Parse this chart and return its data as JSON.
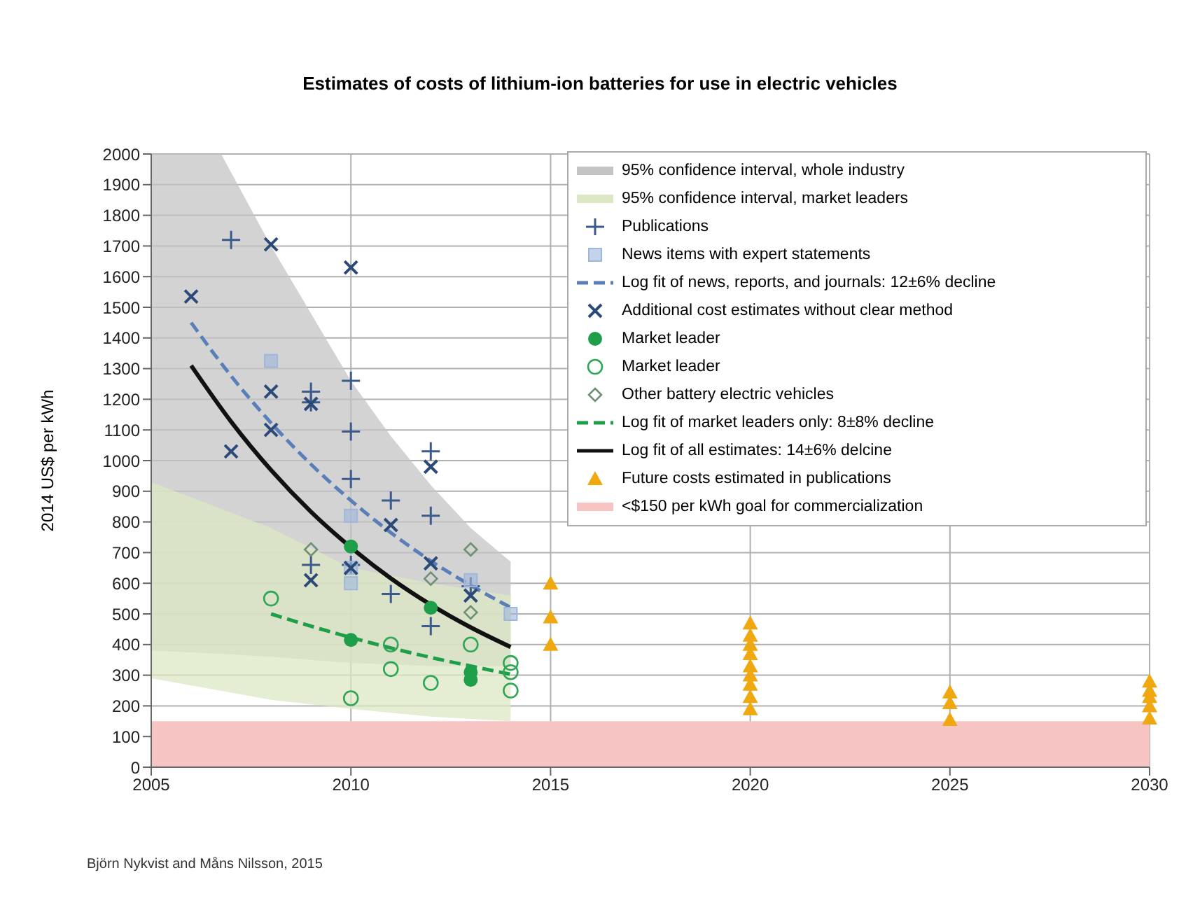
{
  "chart_data": {
    "type": "scatter",
    "title": "Estimates of costs of lithium-ion batteries for use in electric vehicles",
    "ylabel": "2014 US$ per kWh",
    "annotations": [
      "Björn Nykvist and Måns Nilsson, 2015"
    ],
    "xlim": [
      2005,
      2030
    ],
    "xticks": [
      2005,
      2010,
      2015,
      2020,
      2025,
      2030
    ],
    "ylim": [
      0,
      2000
    ],
    "yticks": [
      0,
      100,
      200,
      300,
      400,
      500,
      600,
      700,
      800,
      900,
      1000,
      1100,
      1200,
      1300,
      1400,
      1500,
      1600,
      1700,
      1800,
      1900,
      2000
    ],
    "grid": true,
    "legend": "top right",
    "series": [
      {
        "type": "line",
        "name": "95% confidence interval, whole industry",
        "color": "#c4c4c4",
        "x": [
          2005,
          2006.75,
          2008,
          2009,
          2010,
          2011,
          2012,
          2013,
          2014
        ],
        "values": [
          null,
          null,
          null,
          null,
          null,
          null,
          null,
          null,
          null
        ],
        "lower": [
          380,
          370,
          360,
          350,
          340,
          335,
          330,
          330,
          330
        ],
        "upper": [
          2000,
          2000,
          1700,
          1480,
          1260,
          1080,
          920,
          780,
          670
        ]
      },
      {
        "type": "line",
        "name": "95% confidence interval, market leaders",
        "color": "#dce8c4",
        "x": [
          2005,
          2008,
          2010,
          2012,
          2014
        ],
        "values": [
          null,
          null,
          null,
          null,
          null
        ],
        "lower": [
          290,
          220,
          190,
          165,
          150
        ],
        "upper": [
          930,
          780,
          650,
          600,
          560
        ]
      },
      {
        "type": "scatter",
        "name": "Publications",
        "color": "#3c5a8c",
        "marker": "plus",
        "x": [
          2007,
          2009,
          2009,
          2009,
          2010,
          2010,
          2010,
          2010,
          2011,
          2011,
          2012,
          2012,
          2012,
          2013
        ],
        "values": [
          1720,
          1225,
          1190,
          660,
          1260,
          1095,
          940,
          660,
          870,
          565,
          1030,
          820,
          460,
          590
        ]
      },
      {
        "type": "scatter",
        "name": "News items with expert statements",
        "color": "#9fb6dc",
        "marker": "square",
        "x": [
          2008,
          2010,
          2010,
          2010,
          2013,
          2014
        ],
        "values": [
          1325,
          820,
          650,
          600,
          610,
          500
        ]
      },
      {
        "type": "line",
        "name": "Log fit of news, reports, and journals: 12±6% decline",
        "color": "#5a7fb8",
        "line_style": "dashed",
        "x": [
          2006,
          2007,
          2008,
          2009,
          2010,
          2011,
          2012,
          2013,
          2014
        ],
        "values": [
          1450,
          1276,
          1123,
          988,
          870,
          765,
          673,
          593,
          521
        ]
      },
      {
        "type": "scatter",
        "name": "Additional cost estimates without clear method",
        "color": "#2c4a78",
        "marker": "cross",
        "x": [
          2006,
          2007,
          2008,
          2008,
          2008,
          2009,
          2009,
          2010,
          2010,
          2011,
          2012,
          2012,
          2013
        ],
        "values": [
          1535,
          1030,
          1705,
          1225,
          1100,
          1185,
          610,
          1630,
          650,
          790,
          980,
          665,
          560
        ]
      },
      {
        "type": "scatter",
        "name": "Market leader",
        "color": "#1e9e48",
        "marker": "circle",
        "x": [
          2010,
          2010,
          2012,
          2013,
          2013
        ],
        "values": [
          720,
          415,
          520,
          310,
          285
        ]
      },
      {
        "type": "scatter",
        "name": "Market leader",
        "color": "#2ea655",
        "marker": "open-circle",
        "x": [
          2008,
          2010,
          2011,
          2011,
          2012,
          2013,
          2014,
          2014,
          2014
        ],
        "values": [
          550,
          225,
          400,
          320,
          275,
          400,
          340,
          310,
          250
        ]
      },
      {
        "type": "scatter",
        "name": "Other battery electric vehicles",
        "color": "#6f8f74",
        "marker": "diamond",
        "x": [
          2009,
          2012,
          2013,
          2013
        ],
        "values": [
          710,
          615,
          710,
          505
        ]
      },
      {
        "type": "line",
        "name": "Log fit of market leaders only: 8±8% decline",
        "color": "#1e9e48",
        "line_style": "dashed",
        "x": [
          2008,
          2009,
          2010,
          2011,
          2012,
          2013,
          2014
        ],
        "values": [
          500,
          460,
          423,
          389,
          358,
          330,
          303
        ]
      },
      {
        "type": "line",
        "name": "Log fit of all estimates: 14±6% delcine",
        "color": "#111111",
        "line_style": "solid",
        "x": [
          2006,
          2007,
          2008,
          2009,
          2010,
          2011,
          2012,
          2013,
          2014
        ],
        "values": [
          1310,
          1127,
          969,
          833,
          717,
          616,
          530,
          456,
          392
        ]
      },
      {
        "type": "scatter",
        "name": "Future costs estimated in publications",
        "color": "#f0a810",
        "marker": "triangle",
        "x": [
          2015,
          2015,
          2015,
          2020,
          2020,
          2020,
          2020,
          2020,
          2020,
          2020,
          2020,
          2020,
          2025,
          2025,
          2025,
          2030,
          2030,
          2030,
          2030,
          2030
        ],
        "values": [
          600,
          490,
          400,
          470,
          430,
          400,
          370,
          330,
          300,
          270,
          230,
          190,
          245,
          210,
          155,
          280,
          250,
          230,
          200,
          160
        ]
      }
    ],
    "bands": [
      {
        "axis": "y",
        "from": 0,
        "to": 150,
        "label": "<$150 per kWh goal for commercialization",
        "color": "#f7c4c4"
      }
    ]
  }
}
